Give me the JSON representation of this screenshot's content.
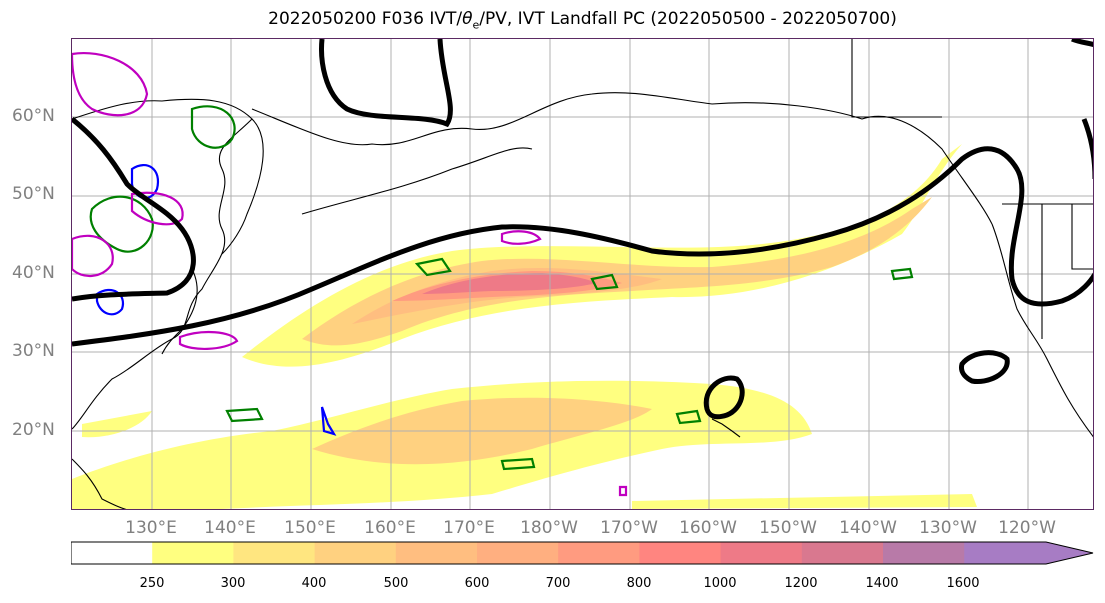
{
  "title_parts": {
    "pre": "2022050200 F036 IVT/",
    "theta": "θ",
    "sub": "e",
    "post": "/PV, IVT Landfall PC (2022050500 - 2022050700)"
  },
  "lat_labels": [
    "60°N",
    "50°N",
    "40°N",
    "30°N",
    "20°N"
  ],
  "lon_labels": [
    "130°E",
    "140°E",
    "150°E",
    "160°E",
    "170°E",
    "180°W",
    "170°W",
    "160°W",
    "150°W",
    "140°W",
    "130°W",
    "120°W"
  ],
  "colorbar": {
    "ticks": [
      "250",
      "300",
      "400",
      "500",
      "600",
      "700",
      "800",
      "1000",
      "1200",
      "1400",
      "1600"
    ],
    "colors": [
      "#ffffff",
      "#ffff80",
      "#ffe680",
      "#ffd180",
      "#ffbe80",
      "#ffaf80",
      "#ff9b80",
      "#ff8580",
      "#ee7a87",
      "#d9788f",
      "#b87aa8",
      "#a77cc4"
    ]
  },
  "colors": {
    "ivt_low": "#ffff80",
    "ivt_mid": "#ffbe80",
    "ivt_high": "#ee7a87",
    "contour_black": "#000000",
    "pv_green": "#008000",
    "pv_blue": "#0000ff",
    "pv_magenta": "#c000c0",
    "grid": "#b0b0b0",
    "tick_label": "#808080"
  }
}
